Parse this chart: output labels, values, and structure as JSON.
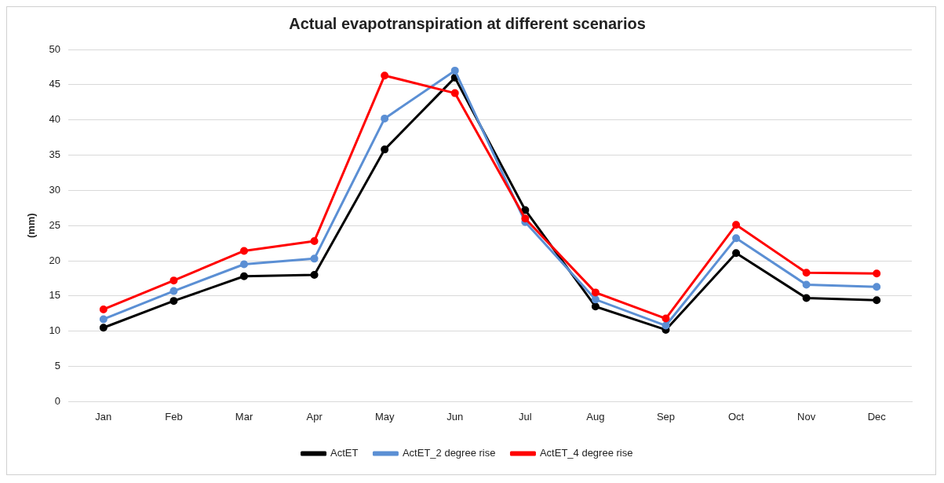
{
  "chart_data": {
    "type": "line",
    "title": "Actual evapotranspiration at different scenarios",
    "ylabel": "(mm)",
    "categories": [
      "Jan",
      "Feb",
      "Mar",
      "Apr",
      "May",
      "Jun",
      "Jul",
      "Aug",
      "Sep",
      "Oct",
      "Nov",
      "Dec"
    ],
    "series": [
      {
        "name": "ActET",
        "color": "#000000",
        "values": [
          10.5,
          14.3,
          17.8,
          18,
          35.8,
          46,
          27.2,
          13.5,
          10.2,
          21.1,
          14.7,
          14.4
        ]
      },
      {
        "name": "ActET_2 degree rise",
        "color": "#5b8fd4",
        "values": [
          11.7,
          15.7,
          19.5,
          20.3,
          40.2,
          47,
          25.5,
          14.5,
          10.8,
          23.2,
          16.6,
          16.3
        ]
      },
      {
        "name": "ActET_4 degree rise",
        "color": "#ff0000",
        "values": [
          13.1,
          17.2,
          21.4,
          22.8,
          46.3,
          43.8,
          26,
          15.5,
          11.8,
          25.1,
          18.3,
          18.2
        ]
      }
    ],
    "ylim": [
      0,
      50
    ],
    "yticks": [
      0,
      5,
      10,
      15,
      20,
      25,
      30,
      35,
      40,
      45,
      50
    ],
    "grid": "y",
    "legend": "bottom",
    "marker": "circle",
    "line_style": "solid"
  }
}
